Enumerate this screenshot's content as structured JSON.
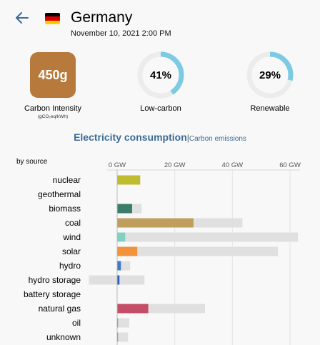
{
  "header": {
    "zone_name": "Germany",
    "date": "November 10, 2021 2:00 PM",
    "back_icon": "arrow-left-icon",
    "flag_icon": "germany-flag-icon",
    "flag_colors": [
      "#000000",
      "#dd0000",
      "#ffce00"
    ]
  },
  "carbon_intensity": {
    "value": "450g",
    "label": "Carbon Intensity",
    "unit": "(gCO₂eq/kWh)",
    "color": "#b87a3c"
  },
  "low_carbon": {
    "value": "41%",
    "fraction": 0.41,
    "label": "Low-carbon"
  },
  "renewable": {
    "value": "29%",
    "fraction": 0.29,
    "label": "Renewable"
  },
  "colors": {
    "gauge_fill": "#7ccbe3",
    "gauge_track": "#ececec",
    "tab": "#3b6c9a",
    "capacity_bar": "#e0e0e0"
  },
  "tabs": {
    "active": "Electricity consumption",
    "separator": "|",
    "other": "Carbon emissions"
  },
  "chart_data": {
    "type": "bar",
    "orientation": "horizontal",
    "title": "",
    "ylabel": "by source",
    "x_unit": "GW",
    "xlim": [
      -10,
      62
    ],
    "x_ticks": [
      0,
      20,
      40,
      60
    ],
    "x_tick_labels": [
      "0 GW",
      "20 GW",
      "40 GW",
      "60 GW"
    ],
    "grid": true,
    "categories": [
      "nuclear",
      "geothermal",
      "biomass",
      "coal",
      "wind",
      "solar",
      "hydro",
      "hydro storage",
      "battery storage",
      "natural gas",
      "oil",
      "unknown"
    ],
    "series": [
      {
        "values": [
          8,
          0,
          5.2,
          26.5,
          2.8,
          7,
          1.3,
          0.8,
          0,
          10.8,
          0.3,
          0.3
        ],
        "colors": [
          "#bfbd2f",
          "#cccccc",
          "#3a7d6a",
          "#bf9e5e",
          "#7fd2c3",
          "#f2933b",
          "#3d7bc4",
          "#2d5bb8",
          "#cccccc",
          "#c44e67",
          "#888888",
          "#888888"
        ]
      },
      {
        "values": [
          8,
          0,
          8.5,
          43.5,
          62.8,
          55.8,
          4.5,
          9.5,
          0.1,
          30.5,
          4.2,
          3.8
        ],
        "color": "#e0e0e0"
      },
      {
        "values": [
          0,
          0,
          0,
          0,
          0,
          0,
          0,
          -9.8,
          -0.2,
          0,
          0,
          0
        ],
        "color": "#e0e0e0"
      }
    ]
  }
}
